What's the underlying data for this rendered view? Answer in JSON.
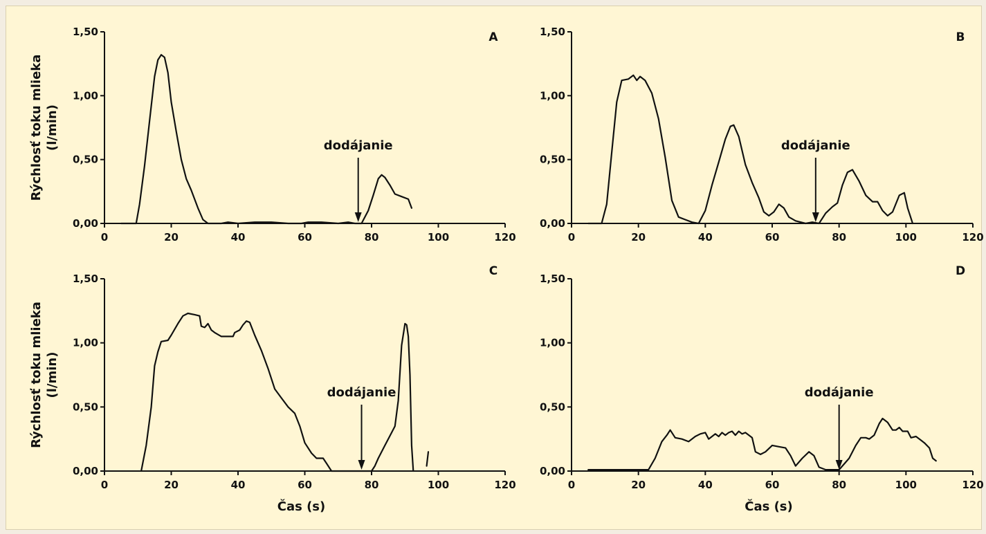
{
  "figure": {
    "background": "#fff6d4",
    "line_color": "#111111"
  },
  "chart_data": [
    {
      "panel": "A",
      "type": "line",
      "ylabel_line1": "Rýchlosť toku mlieka",
      "ylabel_line2": "(l/min)",
      "xlabel": "",
      "xlim": [
        0,
        120
      ],
      "ylim": [
        0,
        1.5
      ],
      "xticks": [
        0,
        20,
        40,
        60,
        80,
        100,
        120
      ],
      "yticks": [
        0,
        0.5,
        1.0,
        1.5
      ],
      "ytick_labels": [
        "0,00",
        "0,50",
        "1,00",
        "1,50"
      ],
      "annotation": {
        "text": "dodájanie",
        "x": 76,
        "y": 0.0
      },
      "series": [
        {
          "segments": [
            [
              [
                5,
                0
              ],
              [
                9.5,
                0
              ],
              [
                10.5,
                0.15
              ],
              [
                12,
                0.45
              ],
              [
                13.5,
                0.8
              ],
              [
                15,
                1.15
              ],
              [
                16,
                1.28
              ],
              [
                17,
                1.32
              ],
              [
                18,
                1.3
              ],
              [
                19,
                1.18
              ],
              [
                20,
                0.95
              ],
              [
                21.5,
                0.72
              ],
              [
                23,
                0.5
              ],
              [
                24.5,
                0.35
              ],
              [
                26,
                0.26
              ],
              [
                28,
                0.12
              ],
              [
                29.5,
                0.03
              ],
              [
                31,
                0
              ],
              [
                35,
                0
              ],
              [
                37,
                0.01
              ],
              [
                40,
                0
              ],
              [
                45,
                0.01
              ],
              [
                50,
                0.01
              ],
              [
                55,
                0
              ],
              [
                59,
                0
              ],
              [
                61,
                0.01
              ],
              [
                65,
                0.01
              ],
              [
                70,
                0
              ],
              [
                73,
                0.01
              ],
              [
                75,
                0
              ],
              [
                77,
                0
              ],
              [
                79,
                0.1
              ],
              [
                80.5,
                0.22
              ],
              [
                82,
                0.35
              ],
              [
                83,
                0.38
              ],
              [
                84,
                0.36
              ],
              [
                85.5,
                0.3
              ],
              [
                87,
                0.23
              ],
              [
                89,
                0.21
              ],
              [
                91,
                0.19
              ],
              [
                92,
                0.12
              ]
            ]
          ]
        }
      ]
    },
    {
      "panel": "B",
      "type": "line",
      "ylabel_line1": "",
      "ylabel_line2": "",
      "xlabel": "",
      "xlim": [
        0,
        120
      ],
      "ylim": [
        0,
        1.5
      ],
      "xticks": [
        0,
        20,
        40,
        60,
        80,
        100,
        120
      ],
      "yticks": [
        0,
        0.5,
        1.0,
        1.5
      ],
      "ytick_labels": [
        "0,00",
        "0,50",
        "1,00",
        "1,50"
      ],
      "annotation": {
        "text": "dodájanie",
        "x": 73,
        "y": 0.0
      },
      "series": [
        {
          "segments": [
            [
              [
                5,
                0
              ],
              [
                9,
                0
              ],
              [
                10.5,
                0.15
              ],
              [
                12,
                0.55
              ],
              [
                13.5,
                0.95
              ],
              [
                15,
                1.12
              ],
              [
                17,
                1.13
              ],
              [
                18.5,
                1.16
              ],
              [
                19.5,
                1.12
              ],
              [
                20.5,
                1.15
              ],
              [
                22,
                1.12
              ],
              [
                24,
                1.02
              ],
              [
                26,
                0.82
              ],
              [
                28,
                0.52
              ],
              [
                30,
                0.18
              ],
              [
                32,
                0.05
              ],
              [
                34,
                0.03
              ],
              [
                36,
                0.01
              ],
              [
                38,
                0
              ],
              [
                40,
                0.1
              ],
              [
                42,
                0.3
              ],
              [
                44,
                0.48
              ],
              [
                46,
                0.66
              ],
              [
                47.5,
                0.76
              ],
              [
                48.5,
                0.77
              ],
              [
                50,
                0.68
              ],
              [
                52,
                0.46
              ],
              [
                54,
                0.32
              ],
              [
                56,
                0.2
              ],
              [
                57.5,
                0.09
              ],
              [
                59,
                0.06
              ],
              [
                60.5,
                0.09
              ],
              [
                62,
                0.15
              ],
              [
                63.5,
                0.12
              ],
              [
                65,
                0.05
              ],
              [
                67,
                0.02
              ],
              [
                70,
                0
              ],
              [
                72,
                0.01
              ],
              [
                74,
                0
              ],
              [
                76,
                0.08
              ],
              [
                78,
                0.13
              ],
              [
                79.5,
                0.16
              ],
              [
                81,
                0.3
              ],
              [
                82.5,
                0.4
              ],
              [
                84,
                0.42
              ],
              [
                86,
                0.33
              ],
              [
                88,
                0.22
              ],
              [
                90,
                0.17
              ],
              [
                91.5,
                0.17
              ],
              [
                93,
                0.1
              ],
              [
                94.5,
                0.06
              ],
              [
                96,
                0.09
              ],
              [
                98,
                0.22
              ],
              [
                99.5,
                0.24
              ],
              [
                100.5,
                0.12
              ],
              [
                102,
                0
              ]
            ]
          ]
        }
      ]
    },
    {
      "panel": "C",
      "type": "line",
      "ylabel_line1": "Rýchlosť toku mlieka",
      "ylabel_line2": "(l/min)",
      "xlabel": "Čas (s)",
      "xlim": [
        0,
        120
      ],
      "ylim": [
        0,
        1.5
      ],
      "xticks": [
        0,
        20,
        40,
        60,
        80,
        100,
        120
      ],
      "yticks": [
        0,
        0.5,
        1.0,
        1.5
      ],
      "ytick_labels": [
        "0,00",
        "0,50",
        "1,00",
        "1,50"
      ],
      "annotation": {
        "text": "dodájanie",
        "x": 77,
        "y": 0.0
      },
      "series": [
        {
          "segments": [
            [
              [
                11,
                0
              ],
              [
                12.5,
                0.2
              ],
              [
                14,
                0.5
              ],
              [
                15,
                0.82
              ],
              [
                16,
                0.93
              ],
              [
                17,
                1.01
              ],
              [
                19,
                1.02
              ],
              [
                20,
                1.06
              ],
              [
                22,
                1.15
              ],
              [
                23.5,
                1.21
              ],
              [
                25,
                1.23
              ],
              [
                27,
                1.22
              ],
              [
                28.5,
                1.21
              ],
              [
                29,
                1.13
              ],
              [
                30,
                1.12
              ],
              [
                31,
                1.15
              ],
              [
                32,
                1.1
              ],
              [
                33,
                1.08
              ],
              [
                35,
                1.05
              ],
              [
                37,
                1.05
              ],
              [
                38.5,
                1.05
              ],
              [
                39,
                1.08
              ],
              [
                40.5,
                1.1
              ],
              [
                41.5,
                1.14
              ],
              [
                42.5,
                1.17
              ],
              [
                43.5,
                1.16
              ],
              [
                45,
                1.06
              ],
              [
                47,
                0.94
              ],
              [
                49,
                0.8
              ],
              [
                51,
                0.64
              ],
              [
                53,
                0.57
              ],
              [
                55,
                0.5
              ],
              [
                57,
                0.45
              ],
              [
                58.5,
                0.35
              ],
              [
                60,
                0.22
              ],
              [
                62,
                0.14
              ],
              [
                63.5,
                0.1
              ],
              [
                65.5,
                0.1
              ],
              [
                66.5,
                0.06
              ],
              [
                68,
                0
              ],
              [
                70,
                0
              ],
              [
                80,
                0
              ],
              [
                81,
                0.04
              ],
              [
                82,
                0.1
              ],
              [
                84,
                0.2
              ],
              [
                86,
                0.3
              ],
              [
                87,
                0.35
              ],
              [
                88,
                0.55
              ],
              [
                89,
                0.98
              ],
              [
                90,
                1.15
              ],
              [
                90.5,
                1.14
              ],
              [
                91,
                1.05
              ],
              [
                91.5,
                0.75
              ],
              [
                92,
                0.2
              ],
              [
                92.5,
                0
              ]
            ],
            [
              [
                96.5,
                0.04
              ],
              [
                97,
                0.15
              ]
            ]
          ]
        }
      ]
    },
    {
      "panel": "D",
      "type": "line",
      "ylabel_line1": "",
      "ylabel_line2": "",
      "xlabel": "Čas (s)",
      "xlim": [
        0,
        120
      ],
      "ylim": [
        0,
        1.5
      ],
      "xticks": [
        0,
        20,
        40,
        60,
        80,
        100,
        120
      ],
      "yticks": [
        0,
        0.5,
        1.0,
        1.5
      ],
      "ytick_labels": [
        "0,00",
        "0,50",
        "1,00",
        "1,50"
      ],
      "annotation": {
        "text": "dodájanie",
        "x": 80,
        "y": 0.0
      },
      "series": [
        {
          "segments": [
            [
              [
                5,
                0.01
              ],
              [
                23,
                0.01
              ],
              [
                25,
                0.1
              ],
              [
                27,
                0.23
              ],
              [
                28.5,
                0.28
              ],
              [
                29.5,
                0.32
              ],
              [
                31,
                0.26
              ],
              [
                33,
                0.25
              ],
              [
                35,
                0.23
              ],
              [
                37,
                0.27
              ],
              [
                38.5,
                0.29
              ],
              [
                40,
                0.3
              ],
              [
                41,
                0.25
              ],
              [
                42,
                0.27
              ],
              [
                43,
                0.29
              ],
              [
                44,
                0.27
              ],
              [
                45,
                0.3
              ],
              [
                46,
                0.28
              ],
              [
                47,
                0.3
              ],
              [
                48,
                0.31
              ],
              [
                49,
                0.28
              ],
              [
                50,
                0.31
              ],
              [
                51,
                0.29
              ],
              [
                52,
                0.3
              ],
              [
                54,
                0.26
              ],
              [
                55,
                0.15
              ],
              [
                56.5,
                0.13
              ],
              [
                58,
                0.15
              ],
              [
                60,
                0.2
              ],
              [
                62,
                0.19
              ],
              [
                64,
                0.18
              ],
              [
                65.5,
                0.12
              ],
              [
                67,
                0.04
              ],
              [
                69,
                0.1
              ],
              [
                71,
                0.15
              ],
              [
                72.5,
                0.12
              ],
              [
                74,
                0.03
              ],
              [
                76,
                0.01
              ],
              [
                80,
                0.01
              ],
              [
                81,
                0.04
              ],
              [
                83,
                0.1
              ],
              [
                85,
                0.2
              ],
              [
                86.5,
                0.26
              ],
              [
                88,
                0.26
              ],
              [
                89,
                0.25
              ],
              [
                90.5,
                0.28
              ],
              [
                92,
                0.37
              ],
              [
                93,
                0.41
              ],
              [
                94.5,
                0.38
              ],
              [
                96,
                0.32
              ],
              [
                97,
                0.32
              ],
              [
                98,
                0.34
              ],
              [
                99,
                0.31
              ],
              [
                100.5,
                0.31
              ],
              [
                101.5,
                0.26
              ],
              [
                103,
                0.27
              ],
              [
                104.5,
                0.24
              ],
              [
                105.5,
                0.22
              ],
              [
                107,
                0.18
              ],
              [
                108,
                0.1
              ],
              [
                109,
                0.08
              ]
            ]
          ]
        }
      ]
    }
  ]
}
